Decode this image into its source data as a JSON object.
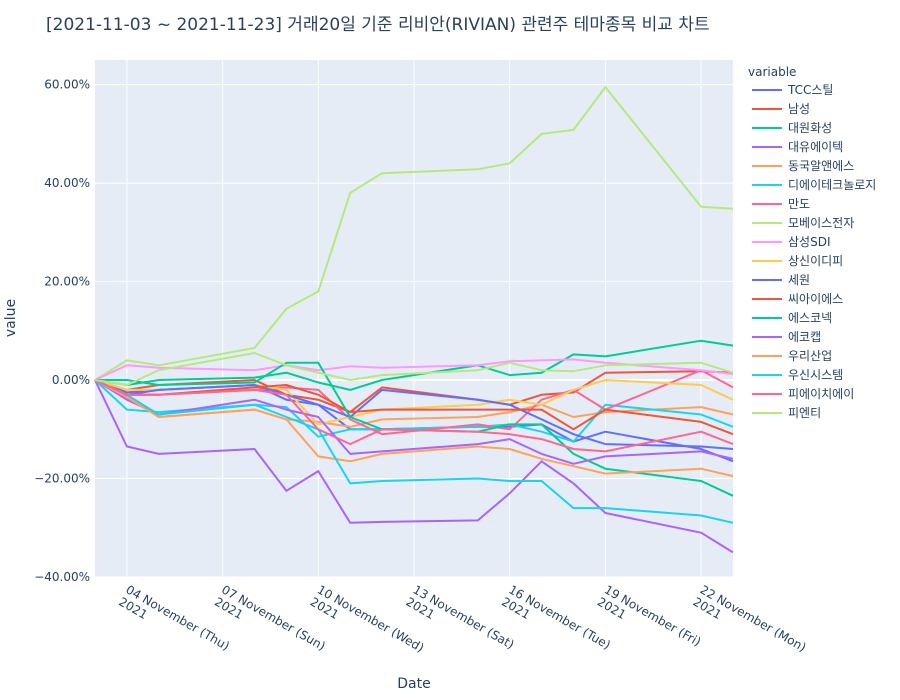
{
  "chart_data": {
    "type": "line",
    "title": "[2021-11-03 ~ 2021-11-23] 거래20일 기준 리비안(RIVIAN) 관련주 테마종목 비교 차트",
    "xlabel": "Date",
    "ylabel": "value",
    "legend_title": "variable",
    "legend_position": "right",
    "grid": true,
    "x": [
      "2021-11-03",
      "2021-11-04",
      "2021-11-05",
      "2021-11-08",
      "2021-11-09",
      "2021-11-10",
      "2021-11-11",
      "2021-11-12",
      "2021-11-15",
      "2021-11-16",
      "2021-11-17",
      "2021-11-18",
      "2021-11-19",
      "2021-11-22",
      "2021-11-23"
    ],
    "x_ticks": [
      {
        "date": "2021-11-04",
        "line1": "04 November (Thu)",
        "line2": "2021"
      },
      {
        "date": "2021-11-07",
        "line1": "07 November (Sun)",
        "line2": "2021"
      },
      {
        "date": "2021-11-10",
        "line1": "10 November (Wed)",
        "line2": "2021"
      },
      {
        "date": "2021-11-13",
        "line1": "13 November (Sat)",
        "line2": "2021"
      },
      {
        "date": "2021-11-16",
        "line1": "16 November (Tue)",
        "line2": "2021"
      },
      {
        "date": "2021-11-19",
        "line1": "19 November (Fri)",
        "line2": "2021"
      },
      {
        "date": "2021-11-22",
        "line1": "22 November (Mon)",
        "line2": "2021"
      }
    ],
    "x_range": [
      "2021-11-03",
      "2021-11-23"
    ],
    "y_range": [
      -0.4,
      0.65
    ],
    "y_ticks": [
      {
        "value": 0.6,
        "label": "60.00%"
      },
      {
        "value": 0.4,
        "label": "40.00%"
      },
      {
        "value": 0.2,
        "label": "20.00%"
      },
      {
        "value": 0.0,
        "label": "0.00%"
      },
      {
        "value": -0.2,
        "label": "−20.00%"
      },
      {
        "value": -0.4,
        "label": "−40.00%"
      }
    ],
    "series": [
      {
        "name": "TCC스틸",
        "color": "#636efa",
        "values": [
          0,
          -0.025,
          -0.02,
          -0.01,
          -0.04,
          -0.05,
          -0.1,
          -0.1,
          -0.095,
          -0.095,
          -0.09,
          -0.125,
          -0.105,
          -0.14,
          -0.165
        ]
      },
      {
        "name": "남성",
        "color": "#EF553B",
        "values": [
          0,
          -0.02,
          -0.01,
          0.0,
          -0.03,
          -0.04,
          -0.065,
          -0.015,
          -0.04,
          -0.05,
          -0.03,
          -0.025,
          0.015,
          0.018,
          0.015
        ]
      },
      {
        "name": "대원화성",
        "color": "#00cc96",
        "values": [
          0,
          -0.01,
          0.0,
          0.005,
          0.015,
          -0.005,
          -0.02,
          0.0,
          0.03,
          0.01,
          0.015,
          0.052,
          0.048,
          0.08,
          0.07
        ]
      },
      {
        "name": "대유에이텍",
        "color": "#ab63fa",
        "values": [
          0,
          -0.135,
          -0.15,
          -0.14,
          -0.225,
          -0.185,
          -0.29,
          -0.288,
          -0.285,
          -0.23,
          -0.165,
          -0.21,
          -0.27,
          -0.31,
          -0.35
        ]
      },
      {
        "name": "동국알앤에스",
        "color": "#FFA15A",
        "values": [
          0,
          -0.03,
          -0.075,
          -0.06,
          -0.08,
          -0.085,
          -0.095,
          -0.08,
          -0.075,
          -0.065,
          -0.05,
          -0.075,
          -0.065,
          -0.055,
          -0.07
        ]
      },
      {
        "name": "디에이테크놀로지",
        "color": "#19d3f3",
        "values": [
          0,
          -0.06,
          -0.065,
          -0.05,
          -0.055,
          -0.115,
          -0.1,
          -0.1,
          -0.095,
          -0.09,
          -0.105,
          -0.125,
          -0.05,
          -0.07,
          -0.095
        ]
      },
      {
        "name": "만도",
        "color": "#FF6692",
        "values": [
          0,
          -0.03,
          -0.03,
          -0.02,
          -0.015,
          -0.02,
          -0.08,
          -0.11,
          -0.09,
          -0.1,
          -0.04,
          -0.02,
          -0.06,
          0.02,
          -0.015
        ]
      },
      {
        "name": "모베이스전자",
        "color": "#B6E880",
        "values": [
          0,
          0.04,
          0.03,
          0.065,
          0.145,
          0.18,
          0.38,
          0.42,
          0.428,
          0.44,
          0.5,
          0.508,
          0.595,
          0.352,
          0.348
        ]
      },
      {
        "name": "삼성SDI",
        "color": "#FF97FF",
        "values": [
          0,
          0.03,
          0.025,
          0.02,
          0.03,
          0.02,
          0.028,
          0.025,
          0.03,
          0.038,
          0.04,
          0.042,
          0.035,
          0.02,
          0.012
        ]
      },
      {
        "name": "상신이디피",
        "color": "#FECB52",
        "values": [
          0,
          -0.02,
          -0.02,
          -0.01,
          -0.02,
          -0.09,
          -0.075,
          -0.06,
          -0.05,
          -0.04,
          -0.05,
          -0.02,
          0.0,
          -0.01,
          -0.04
        ]
      },
      {
        "name": "세원",
        "color": "#636efa",
        "values": [
          0,
          -0.03,
          -0.02,
          -0.01,
          -0.03,
          -0.05,
          -0.075,
          -0.02,
          -0.04,
          -0.05,
          -0.08,
          -0.11,
          -0.13,
          -0.135,
          -0.14
        ]
      },
      {
        "name": "씨아이에스",
        "color": "#EF553B",
        "values": [
          0,
          -0.03,
          -0.03,
          -0.015,
          -0.01,
          -0.03,
          -0.065,
          -0.06,
          -0.06,
          -0.06,
          -0.06,
          -0.1,
          -0.06,
          -0.085,
          -0.11
        ]
      },
      {
        "name": "에스코넥",
        "color": "#00cc96",
        "values": [
          0,
          0.0,
          -0.01,
          -0.005,
          0.035,
          0.035,
          -0.075,
          -0.1,
          -0.105,
          -0.09,
          -0.09,
          -0.15,
          -0.18,
          -0.205,
          -0.235
        ]
      },
      {
        "name": "에코캡",
        "color": "#ab63fa",
        "values": [
          0,
          -0.04,
          -0.07,
          -0.04,
          -0.06,
          -0.075,
          -0.15,
          -0.145,
          -0.13,
          -0.12,
          -0.15,
          -0.17,
          -0.155,
          -0.145,
          -0.16
        ]
      },
      {
        "name": "우리산업",
        "color": "#FFA15A",
        "values": [
          0,
          -0.035,
          -0.075,
          -0.06,
          -0.08,
          -0.155,
          -0.165,
          -0.15,
          -0.135,
          -0.14,
          -0.16,
          -0.175,
          -0.19,
          -0.18,
          -0.195
        ]
      },
      {
        "name": "우신시스템",
        "color": "#19d3f3",
        "values": [
          0,
          -0.03,
          -0.07,
          -0.05,
          -0.075,
          -0.1,
          -0.21,
          -0.205,
          -0.2,
          -0.205,
          -0.205,
          -0.26,
          -0.26,
          -0.275,
          -0.29
        ]
      },
      {
        "name": "피에이치에이",
        "color": "#FF6692",
        "values": [
          0,
          -0.03,
          -0.03,
          -0.02,
          -0.03,
          -0.1,
          -0.13,
          -0.1,
          -0.105,
          -0.11,
          -0.12,
          -0.14,
          -0.145,
          -0.105,
          -0.13
        ]
      },
      {
        "name": "피엔티",
        "color": "#B6E880",
        "values": [
          0,
          -0.01,
          0.02,
          0.055,
          0.03,
          0.015,
          0.0,
          0.01,
          0.02,
          0.035,
          0.02,
          0.018,
          0.03,
          0.035,
          0.015
        ]
      }
    ]
  }
}
